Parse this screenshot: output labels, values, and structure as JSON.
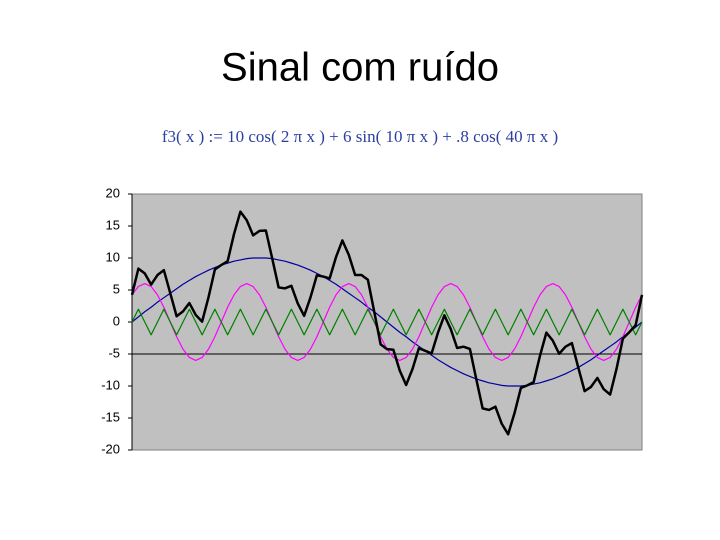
{
  "chart_data": {
    "type": "line",
    "title": "Sinal com ruído",
    "subtitle": "f3( x ) := 10 cos( 2 π x ) + 6 sin( 10 π x ) + .8 cos( 40 π x )",
    "x": [
      0,
      1,
      2,
      3,
      4,
      5,
      6,
      7,
      8,
      9,
      10,
      11,
      12,
      13,
      14,
      15,
      16,
      17,
      18,
      19,
      20,
      21,
      22,
      23,
      24,
      25,
      26,
      27,
      28,
      29,
      30,
      31,
      32,
      33,
      34,
      35,
      36,
      37,
      38,
      39,
      40,
      41,
      42,
      43,
      44,
      45,
      46,
      47,
      48,
      49,
      50,
      51,
      52,
      53,
      54,
      55,
      56,
      57,
      58,
      59,
      60,
      61,
      62,
      63,
      64,
      65,
      66,
      67,
      68,
      69,
      70,
      71,
      72,
      73,
      74,
      75,
      76,
      77,
      78,
      79,
      80
    ],
    "xlim": [
      0,
      80
    ],
    "ylim": [
      -20,
      20
    ],
    "yticks": [
      20,
      15,
      10,
      5,
      0,
      -5,
      -10,
      -15,
      -20
    ],
    "xaxis_crosses": -5,
    "plot_color": "#c0c0c0",
    "series": [
      {
        "color": "#0000a0",
        "values": [
          0,
          0.8,
          1.6,
          2.3,
          3.1,
          3.8,
          4.5,
          5.2,
          5.9,
          6.5,
          7.1,
          7.6,
          8.1,
          8.5,
          8.9,
          9.2,
          9.5,
          9.7,
          9.9,
          10,
          10,
          10,
          9.9,
          9.7,
          9.5,
          9.2,
          8.9,
          8.5,
          8.1,
          7.6,
          7.1,
          6.5,
          5.9,
          5.2,
          4.5,
          3.8,
          3.1,
          2.3,
          1.6,
          0.8,
          0,
          -0.8,
          -1.6,
          -2.3,
          -3.1,
          -3.8,
          -4.5,
          -5.2,
          -5.9,
          -6.5,
          -7.1,
          -7.6,
          -8.1,
          -8.5,
          -8.9,
          -9.2,
          -9.5,
          -9.7,
          -9.9,
          -10,
          -10,
          -10,
          -9.9,
          -9.7,
          -9.5,
          -9.2,
          -8.9,
          -8.5,
          -8.1,
          -7.6,
          -7.1,
          -6.5,
          -5.9,
          -5.2,
          -4.5,
          -3.8,
          -3.1,
          -2.3,
          -1.6,
          -0.8,
          0
        ]
      },
      {
        "color": "#ff00ff",
        "values": [
          4.24,
          5.54,
          6,
          5.54,
          4.24,
          2.3,
          0,
          -2.3,
          -4.24,
          -5.54,
          -6,
          -5.54,
          -4.24,
          -2.3,
          0,
          2.3,
          4.24,
          5.54,
          6,
          5.54,
          4.24,
          2.3,
          0,
          -2.3,
          -4.24,
          -5.54,
          -6,
          -5.54,
          -4.24,
          -2.3,
          0,
          2.3,
          4.24,
          5.54,
          6,
          5.54,
          4.24,
          2.3,
          0,
          -2.3,
          -4.24,
          -5.54,
          -6,
          -5.54,
          -4.24,
          -2.3,
          0,
          2.3,
          4.24,
          5.54,
          6,
          5.54,
          4.24,
          2.3,
          0,
          -2.3,
          -4.24,
          -5.54,
          -6,
          -5.54,
          -4.24,
          -2.3,
          0,
          2.3,
          4.24,
          5.54,
          6,
          5.54,
          4.24,
          2.3,
          0,
          -2.3,
          -4.24,
          -5.54,
          -6,
          -5.54,
          -4.24,
          -2.3,
          0,
          2.3,
          4.24
        ]
      },
      {
        "color": "#008000",
        "values": [
          0,
          2,
          0,
          -2,
          0,
          2,
          0,
          -2,
          0,
          2,
          0,
          -2,
          0,
          2,
          0,
          -2,
          0,
          2,
          0,
          -2,
          0,
          2,
          0,
          -2,
          0,
          2,
          0,
          -2,
          0,
          2,
          0,
          -2,
          0,
          2,
          0,
          -2,
          0,
          2,
          0,
          -2,
          0,
          2,
          0,
          -2,
          0,
          2,
          0,
          -2,
          0,
          2,
          0,
          -2,
          0,
          2,
          0,
          -2,
          0,
          2,
          0,
          -2,
          0,
          2,
          0,
          -2,
          0,
          2,
          0,
          -2,
          0,
          2,
          0,
          -2,
          0,
          2,
          0,
          -2,
          0,
          2,
          0,
          -2,
          0
        ]
      },
      {
        "color": "#000000",
        "values": [
          4.24,
          8.34,
          7.6,
          5.84,
          7.34,
          8.1,
          4.5,
          0.9,
          1.66,
          2.96,
          1.1,
          0.06,
          3.86,
          8.2,
          8.9,
          9.5,
          13.74,
          17.24,
          15.9,
          13.54,
          14.24,
          14.3,
          9.9,
          5.4,
          5.26,
          5.66,
          2.9,
          0.96,
          3.86,
          7.3,
          7.1,
          6.8,
          10.14,
          12.74,
          10.5,
          7.34,
          7.34,
          6.6,
          1.6,
          -3.5,
          -4.24,
          -4.34,
          -7.6,
          -9.84,
          -7.34,
          -4.1,
          -4.5,
          -4.9,
          -1.66,
          1.04,
          -1.1,
          -4.06,
          -3.86,
          -4.2,
          -8.9,
          -13.5,
          -13.74,
          -13.24,
          -15.9,
          -17.54,
          -14.24,
          -10.3,
          -9.9,
          -9.4,
          -5.26,
          -1.66,
          -2.9,
          -4.96,
          -3.86,
          -3.3,
          -7.1,
          -10.8,
          -10.14,
          -8.74,
          -10.5,
          -11.34,
          -7.34,
          -2.6,
          -1.6,
          -0.5,
          4.24
        ]
      }
    ]
  }
}
